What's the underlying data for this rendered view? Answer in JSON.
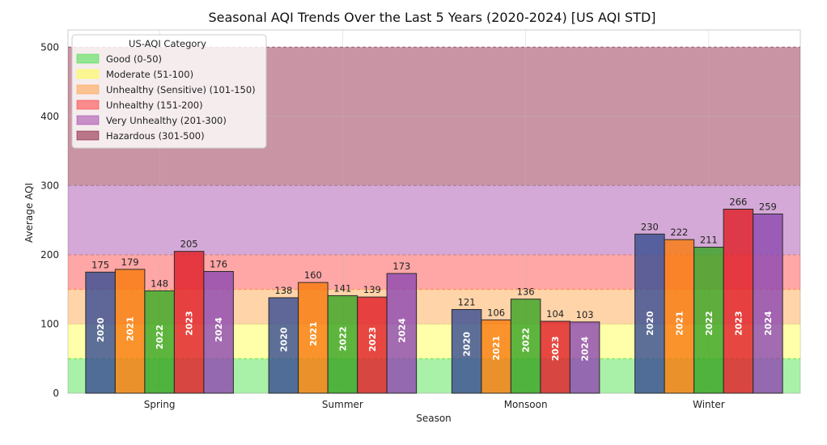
{
  "chart_data": {
    "type": "bar",
    "title": "Seasonal AQI Trends Over the Last 5 Years (2020-2024) [US AQI STD]",
    "xlabel": "Season",
    "ylabel": "Average AQI",
    "ylim": [
      0,
      525
    ],
    "yticks": [
      0,
      100,
      200,
      300,
      400,
      500
    ],
    "grid": true,
    "categories": [
      "Spring",
      "Summer",
      "Monsoon",
      "Winter"
    ],
    "series": [
      {
        "name": "2020",
        "color": "#3b4f93",
        "values": [
          175,
          138,
          121,
          230
        ]
      },
      {
        "name": "2021",
        "color": "#f97b0f",
        "values": [
          179,
          160,
          106,
          222
        ]
      },
      {
        "name": "2022",
        "color": "#3aa524",
        "values": [
          148,
          141,
          136,
          211
        ]
      },
      {
        "name": "2023",
        "color": "#e0202a",
        "values": [
          205,
          139,
          104,
          266
        ]
      },
      {
        "name": "2024",
        "color": "#8f4ab1",
        "values": [
          176,
          173,
          103,
          259
        ]
      }
    ],
    "bands": [
      {
        "label": "Good (0-50)",
        "from": 0,
        "to": 50,
        "color": "#33dd33"
      },
      {
        "label": "Moderate (51-100)",
        "from": 50,
        "to": 100,
        "color": "#ffff33"
      },
      {
        "label": "Unhealthy (Sensitive) (101-150)",
        "from": 100,
        "to": 150,
        "color": "#ff9933"
      },
      {
        "label": "Unhealthy (151-200)",
        "from": 150,
        "to": 200,
        "color": "#ff2a2a"
      },
      {
        "label": "Very Unhealthy (201-300)",
        "from": 200,
        "to": 300,
        "color": "#9933a0"
      },
      {
        "label": "Hazardous (301-500)",
        "from": 300,
        "to": 500,
        "color": "#7e0023"
      }
    ],
    "legend": {
      "title": "US-AQI Category",
      "placement": "top-left"
    }
  }
}
